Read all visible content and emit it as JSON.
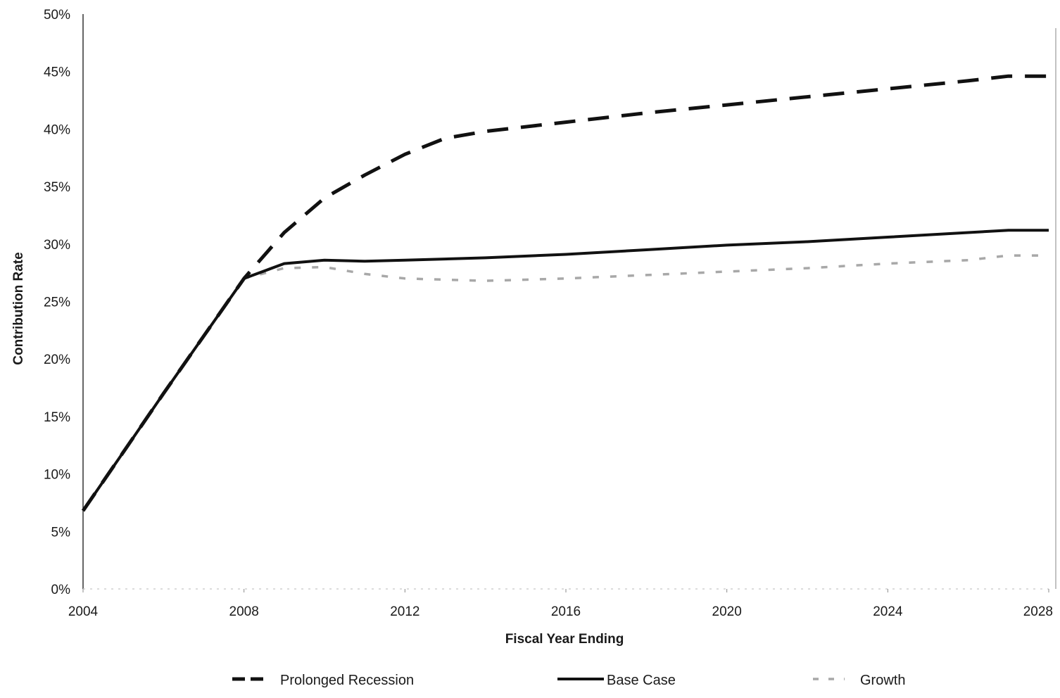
{
  "chart_data": {
    "type": "line",
    "title": "",
    "xlabel": "Fiscal Year Ending",
    "ylabel": "Contribution Rate",
    "xlim": [
      2004,
      2028
    ],
    "ylim": [
      0,
      50
    ],
    "x_ticks": [
      2004,
      2008,
      2012,
      2016,
      2020,
      2024,
      2028
    ],
    "x_tick_labels": [
      "2004",
      "2008",
      "2012",
      "2016",
      "2020",
      "2024",
      "2028"
    ],
    "y_ticks": [
      0,
      5,
      10,
      15,
      20,
      25,
      30,
      35,
      40,
      45,
      50
    ],
    "y_tick_labels": [
      "0%",
      "5%",
      "10%",
      "15%",
      "20%",
      "25%",
      "30%",
      "35%",
      "40%",
      "45%",
      "50%"
    ],
    "grid": false,
    "legend_position": "bottom",
    "series": [
      {
        "name": "Prolonged Recession",
        "style": "dashed-long",
        "color": "#111111",
        "x": [
          2004,
          2005,
          2006,
          2007,
          2008,
          2009,
          2010,
          2011,
          2012,
          2013,
          2014,
          2016,
          2018,
          2020,
          2022,
          2024,
          2026,
          2027,
          2028
        ],
        "y": [
          6.8,
          11.9,
          17.0,
          22.0,
          27.0,
          31.0,
          34.0,
          36.0,
          37.8,
          39.2,
          39.8,
          40.6,
          41.4,
          42.1,
          42.8,
          43.5,
          44.2,
          44.6,
          44.6
        ]
      },
      {
        "name": "Base Case",
        "style": "solid",
        "color": "#111111",
        "x": [
          2004,
          2005,
          2006,
          2007,
          2008,
          2009,
          2010,
          2011,
          2012,
          2014,
          2016,
          2018,
          2020,
          2022,
          2024,
          2026,
          2027,
          2028
        ],
        "y": [
          6.8,
          11.9,
          17.0,
          22.0,
          27.0,
          28.3,
          28.6,
          28.5,
          28.6,
          28.8,
          29.1,
          29.5,
          29.9,
          30.2,
          30.6,
          31.0,
          31.2,
          31.2
        ]
      },
      {
        "name": "Growth",
        "style": "dashed-light",
        "color": "#a8a8a8",
        "x": [
          2004,
          2005,
          2006,
          2007,
          2008,
          2009,
          2010,
          2011,
          2012,
          2013,
          2014,
          2015,
          2016,
          2018,
          2020,
          2022,
          2024,
          2026,
          2027,
          2028
        ],
        "y": [
          6.8,
          11.9,
          17.0,
          22.0,
          27.0,
          27.9,
          28.0,
          27.4,
          27.0,
          26.9,
          26.8,
          26.9,
          27.0,
          27.3,
          27.6,
          27.9,
          28.3,
          28.6,
          29.0,
          29.0
        ]
      }
    ]
  }
}
